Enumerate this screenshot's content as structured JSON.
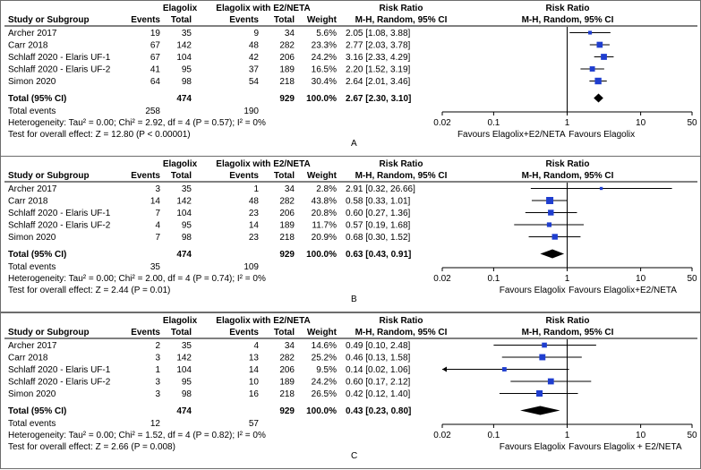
{
  "headers": {
    "group1": "Elagolix",
    "group2": "Elagolix with E2/NETA",
    "study_or_subgroup": "Study or Subgroup",
    "events": "Events",
    "total": "Total",
    "weight": "Weight",
    "ratio_col_title": "Risk Ratio",
    "ratio_col_method": "M-H, Random, 95% CI",
    "plot_title": "Risk Ratio",
    "plot_method": "M-H, Random, 95% CI"
  },
  "chart_data": [
    {
      "type": "forest",
      "panel_label": "A",
      "x_scale": "log",
      "xlim": [
        0.02,
        50
      ],
      "ticks": [
        "0.02",
        "0.1",
        "1",
        "10",
        "50"
      ],
      "favours_left": "Favours Elagolix+E2/NETA",
      "favours_right": "Favours Elagolix",
      "studies": [
        {
          "name": "Archer 2017",
          "e1": "19",
          "n1": "35",
          "e2": "9",
          "n2": "34",
          "weight": "5.6%",
          "ci_text": "2.05 [1.08, 3.88]",
          "rr": 2.05,
          "lo": 1.08,
          "hi": 3.88,
          "w": 5.6
        },
        {
          "name": "Carr 2018",
          "e1": "67",
          "n1": "142",
          "e2": "48",
          "n2": "282",
          "weight": "23.3%",
          "ci_text": "2.77 [2.03, 3.78]",
          "rr": 2.77,
          "lo": 2.03,
          "hi": 3.78,
          "w": 23.3
        },
        {
          "name": "Schlaff 2020 - Elaris UF-1",
          "e1": "67",
          "n1": "104",
          "e2": "42",
          "n2": "206",
          "weight": "24.2%",
          "ci_text": "3.16 [2.33, 4.29]",
          "rr": 3.16,
          "lo": 2.33,
          "hi": 4.29,
          "w": 24.2
        },
        {
          "name": "Schlaff 2020 - Elaris UF-2",
          "e1": "41",
          "n1": "95",
          "e2": "37",
          "n2": "189",
          "weight": "16.5%",
          "ci_text": "2.20 [1.52, 3.19]",
          "rr": 2.2,
          "lo": 1.52,
          "hi": 3.19,
          "w": 16.5
        },
        {
          "name": "Simon 2020",
          "e1": "64",
          "n1": "98",
          "e2": "54",
          "n2": "218",
          "weight": "30.4%",
          "ci_text": "2.64 [2.01, 3.46]",
          "rr": 2.64,
          "lo": 2.01,
          "hi": 3.46,
          "w": 30.4
        }
      ],
      "total": {
        "label": "Total (95% CI)",
        "n1": "474",
        "n2": "929",
        "weight": "100.0%",
        "ci_text": "2.67 [2.30, 3.10]",
        "rr": 2.67,
        "lo": 2.3,
        "hi": 3.1
      },
      "total_events": {
        "label": "Total events",
        "e1": "258",
        "e2": "190"
      },
      "heterogeneity": "Heterogeneity: Tau² = 0.00; Chi² = 2.92, df = 4 (P = 0.57); I² = 0%",
      "overall_effect": "Test for overall effect: Z = 12.80 (P < 0.00001)"
    },
    {
      "type": "forest",
      "panel_label": "B",
      "x_scale": "log",
      "xlim": [
        0.02,
        50
      ],
      "ticks": [
        "0.02",
        "0.1",
        "1",
        "10",
        "50"
      ],
      "favours_left": "Favours Elagolix",
      "favours_right": "Favours Elagolix+E2/NETA",
      "studies": [
        {
          "name": "Archer 2017",
          "e1": "3",
          "n1": "35",
          "e2": "1",
          "n2": "34",
          "weight": "2.8%",
          "ci_text": "2.91 [0.32, 26.66]",
          "rr": 2.91,
          "lo": 0.32,
          "hi": 26.66,
          "w": 2.8
        },
        {
          "name": "Carr 2018",
          "e1": "14",
          "n1": "142",
          "e2": "48",
          "n2": "282",
          "weight": "43.8%",
          "ci_text": "0.58 [0.33, 1.01]",
          "rr": 0.58,
          "lo": 0.33,
          "hi": 1.01,
          "w": 43.8
        },
        {
          "name": "Schlaff 2020 - Elaris UF-1",
          "e1": "7",
          "n1": "104",
          "e2": "23",
          "n2": "206",
          "weight": "20.8%",
          "ci_text": "0.60 [0.27, 1.36]",
          "rr": 0.6,
          "lo": 0.27,
          "hi": 1.36,
          "w": 20.8
        },
        {
          "name": "Schlaff 2020 - Elaris UF-2",
          "e1": "4",
          "n1": "95",
          "e2": "14",
          "n2": "189",
          "weight": "11.7%",
          "ci_text": "0.57 [0.19, 1.68]",
          "rr": 0.57,
          "lo": 0.19,
          "hi": 1.68,
          "w": 11.7
        },
        {
          "name": "Simon 2020",
          "e1": "7",
          "n1": "98",
          "e2": "23",
          "n2": "218",
          "weight": "20.9%",
          "ci_text": "0.68 [0.30, 1.52]",
          "rr": 0.68,
          "lo": 0.3,
          "hi": 1.52,
          "w": 20.9
        }
      ],
      "total": {
        "label": "Total (95% CI)",
        "n1": "474",
        "n2": "929",
        "weight": "100.0%",
        "ci_text": "0.63 [0.43, 0.91]",
        "rr": 0.63,
        "lo": 0.43,
        "hi": 0.91
      },
      "total_events": {
        "label": "Total events",
        "e1": "35",
        "e2": "109"
      },
      "heterogeneity": "Heterogeneity: Tau² = 0.00; Chi² = 2.00, df = 4 (P = 0.74); I² = 0%",
      "overall_effect": "Test for overall effect: Z = 2.44 (P = 0.01)"
    },
    {
      "type": "forest",
      "panel_label": "C",
      "x_scale": "log",
      "xlim": [
        0.02,
        50
      ],
      "ticks": [
        "0.02",
        "0.1",
        "1",
        "10",
        "50"
      ],
      "favours_left": "Favours Elagolix",
      "favours_right": "Favours Elagolix + E2/NETA",
      "studies": [
        {
          "name": "Archer 2017",
          "e1": "2",
          "n1": "35",
          "e2": "4",
          "n2": "34",
          "weight": "14.6%",
          "ci_text": "0.49 [0.10, 2.48]",
          "rr": 0.49,
          "lo": 0.1,
          "hi": 2.48,
          "w": 14.6
        },
        {
          "name": "Carr 2018",
          "e1": "3",
          "n1": "142",
          "e2": "13",
          "n2": "282",
          "weight": "25.2%",
          "ci_text": "0.46 [0.13, 1.58]",
          "rr": 0.46,
          "lo": 0.13,
          "hi": 1.58,
          "w": 25.2
        },
        {
          "name": "Schlaff 2020 - Elaris UF-1",
          "e1": "1",
          "n1": "104",
          "e2": "14",
          "n2": "206",
          "weight": "9.5%",
          "ci_text": "0.14 [0.02, 1.06]",
          "rr": 0.14,
          "lo": 0.02,
          "hi": 1.06,
          "w": 9.5
        },
        {
          "name": "Schlaff 2020 - Elaris UF-2",
          "e1": "3",
          "n1": "95",
          "e2": "10",
          "n2": "189",
          "weight": "24.2%",
          "ci_text": "0.60 [0.17, 2.12]",
          "rr": 0.6,
          "lo": 0.17,
          "hi": 2.12,
          "w": 24.2
        },
        {
          "name": "Simon 2020",
          "e1": "3",
          "n1": "98",
          "e2": "16",
          "n2": "218",
          "weight": "26.5%",
          "ci_text": "0.42 [0.12, 1.40]",
          "rr": 0.42,
          "lo": 0.12,
          "hi": 1.4,
          "w": 26.5
        }
      ],
      "total": {
        "label": "Total (95% CI)",
        "n1": "474",
        "n2": "929",
        "weight": "100.0%",
        "ci_text": "0.43 [0.23, 0.80]",
        "rr": 0.43,
        "lo": 0.23,
        "hi": 0.8
      },
      "total_events": {
        "label": "Total events",
        "e1": "12",
        "e2": "57"
      },
      "heterogeneity": "Heterogeneity: Tau² = 0.00; Chi² = 1.52, df = 4 (P = 0.82); I² = 0%",
      "overall_effect": "Test for overall effect: Z = 2.66 (P = 0.008)"
    }
  ]
}
